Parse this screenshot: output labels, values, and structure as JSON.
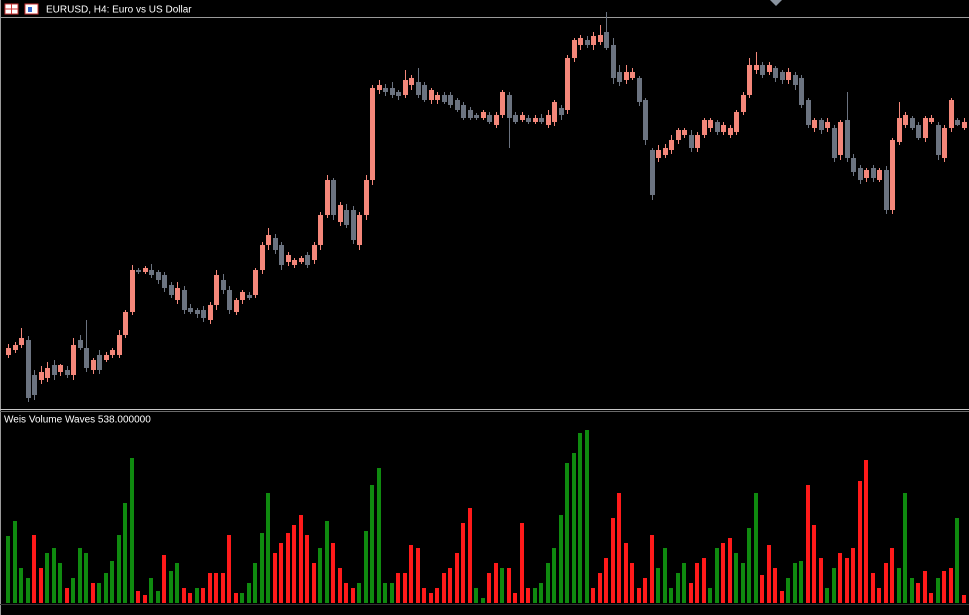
{
  "chart_data": [
    {
      "type": "candlestick",
      "title": "EURUSD, H4:  Euro vs US Dollar",
      "up_color": "#f4877a",
      "down_color": "#6b7380",
      "ylim": [
        0,
        392
      ],
      "open": [
        55,
        60,
        65,
        70,
        35,
        30,
        32,
        45,
        38,
        40,
        35,
        70,
        62,
        40,
        55,
        50,
        55,
        55,
        75,
        98,
        140,
        138,
        140,
        138,
        135,
        125,
        110,
        120,
        102,
        100,
        100,
        90,
        105,
        130,
        120,
        98,
        110,
        115,
        115,
        140,
        165,
        172,
        165,
        148,
        145,
        148,
        155,
        150,
        165,
        195,
        230,
        188,
        200,
        200,
        165,
        195,
        230,
        320,
        322,
        322,
        318,
        315,
        325,
        328,
        325,
        310,
        310,
        315,
        315,
        310,
        305,
        300,
        295,
        292,
        295,
        285,
        295,
        315,
        295,
        290,
        292,
        288,
        292,
        285,
        288,
        302,
        300,
        352,
        365,
        370,
        365,
        368,
        378,
        365,
        338,
        330,
        332,
        332,
        310,
        260,
        252,
        255,
        260,
        270,
        275,
        275,
        262,
        275,
        282,
        288,
        278,
        275,
        278,
        298,
        315,
        340,
        345,
        338,
        342,
        338,
        330,
        335,
        332,
        310,
        282,
        290,
        282,
        282,
        255,
        290,
        252,
        242,
        232,
        242,
        230,
        240,
        200,
        268,
        285,
        292,
        285,
        272,
        288,
        285,
        252,
        282,
        290,
        282
      ],
      "high": [
        66,
        68,
        82,
        74,
        40,
        44,
        48,
        50,
        46,
        44,
        72,
        75,
        90,
        52,
        60,
        58,
        62,
        80,
        100,
        145,
        142,
        144,
        146,
        140,
        138,
        128,
        128,
        124,
        106,
        102,
        104,
        108,
        140,
        136,
        124,
        112,
        120,
        118,
        142,
        168,
        182,
        176,
        168,
        158,
        152,
        154,
        158,
        168,
        198,
        235,
        232,
        208,
        206,
        204,
        198,
        235,
        325,
        330,
        326,
        328,
        320,
        340,
        335,
        342,
        328,
        322,
        318,
        318,
        318,
        312,
        308,
        303,
        297,
        300,
        298,
        298,
        320,
        318,
        298,
        298,
        295,
        295,
        296,
        300,
        310,
        305,
        355,
        372,
        375,
        374,
        378,
        385,
        398,
        372,
        345,
        345,
        342,
        334,
        312,
        262,
        265,
        266,
        275,
        282,
        282,
        280,
        278,
        292,
        292,
        290,
        288,
        285,
        300,
        318,
        352,
        358,
        348,
        348,
        344,
        340,
        342,
        338,
        335,
        312,
        292,
        292,
        292,
        285,
        290,
        318,
        256,
        245,
        242,
        245,
        242,
        244,
        272,
        308,
        298,
        294,
        288,
        294,
        295,
        288,
        285,
        312,
        292,
        292
      ],
      "low": [
        52,
        57,
        62,
        8,
        10,
        26,
        28,
        30,
        34,
        32,
        30,
        60,
        38,
        36,
        36,
        48,
        52,
        52,
        72,
        95,
        136,
        136,
        132,
        126,
        118,
        112,
        106,
        96,
        96,
        92,
        88,
        86,
        100,
        116,
        96,
        95,
        106,
        110,
        112,
        136,
        160,
        156,
        140,
        144,
        142,
        146,
        142,
        146,
        160,
        192,
        190,
        184,
        182,
        166,
        160,
        190,
        225,
        316,
        314,
        312,
        310,
        312,
        320,
        312,
        308,
        306,
        306,
        306,
        302,
        298,
        290,
        290,
        290,
        290,
        286,
        282,
        292,
        262,
        286,
        288,
        286,
        286,
        286,
        282,
        284,
        290,
        296,
        348,
        360,
        362,
        360,
        365,
        360,
        326,
        324,
        326,
        330,
        304,
        265,
        210,
        248,
        252,
        256,
        266,
        272,
        258,
        258,
        272,
        278,
        275,
        275,
        272,
        275,
        295,
        312,
        336,
        332,
        335,
        328,
        326,
        326,
        320,
        302,
        282,
        278,
        276,
        278,
        248,
        250,
        248,
        234,
        226,
        228,
        228,
        228,
        196,
        196,
        265,
        282,
        280,
        270,
        268,
        286,
        250,
        248,
        278,
        284,
        280
      ],
      "close": [
        62,
        65,
        72,
        12,
        15,
        38,
        42,
        35,
        45,
        35,
        65,
        62,
        42,
        50,
        40,
        55,
        60,
        75,
        98,
        140,
        138,
        142,
        135,
        130,
        122,
        115,
        122,
        100,
        98,
        96,
        92,
        105,
        135,
        120,
        100,
        110,
        118,
        112,
        140,
        165,
        175,
        160,
        145,
        155,
        150,
        152,
        145,
        165,
        195,
        230,
        195,
        205,
        185,
        170,
        195,
        230,
        322,
        325,
        318,
        315,
        314,
        330,
        332,
        315,
        310,
        320,
        315,
        308,
        305,
        300,
        292,
        292,
        292,
        298,
        288,
        295,
        318,
        292,
        288,
        295,
        288,
        292,
        288,
        295,
        308,
        295,
        352,
        370,
        372,
        365,
        374,
        375,
        362,
        332,
        328,
        338,
        338,
        308,
        270,
        215,
        260,
        262,
        270,
        280,
        280,
        262,
        275,
        290,
        290,
        278,
        285,
        282,
        298,
        315,
        345,
        345,
        335,
        345,
        332,
        330,
        338,
        325,
        305,
        285,
        290,
        280,
        288,
        252,
        288,
        252,
        238,
        230,
        240,
        232,
        240,
        200,
        270,
        292,
        295,
        282,
        272,
        292,
        292,
        255,
        282,
        310,
        285,
        288
      ]
    },
    {
      "type": "histogram",
      "title": "Weis Volume Waves 538.000000",
      "palette": [
        "#0f8a0f",
        "#ff1a1a"
      ],
      "ylim": [
        0,
        190
      ],
      "values": [
        67,
        82,
        35,
        25,
        68,
        35,
        50,
        55,
        40,
        15,
        25,
        55,
        50,
        20,
        20,
        30,
        42,
        68,
        100,
        145,
        12,
        8,
        25,
        12,
        48,
        32,
        40,
        15,
        10,
        15,
        15,
        30,
        30,
        30,
        68,
        10,
        10,
        20,
        40,
        70,
        110,
        50,
        60,
        70,
        78,
        88,
        68,
        40,
        55,
        82,
        60,
        35,
        20,
        15,
        20,
        72,
        118,
        135,
        20,
        20,
        30,
        30,
        58,
        55,
        15,
        10,
        15,
        30,
        35,
        50,
        80,
        95,
        15,
        5,
        30,
        40,
        35,
        35,
        10,
        80,
        15,
        15,
        20,
        40,
        55,
        88,
        140,
        150,
        170,
        173,
        15,
        30,
        45,
        85,
        110,
        60,
        40,
        15,
        25,
        68,
        35,
        55,
        15,
        30,
        40,
        20,
        40,
        45,
        15,
        55,
        60,
        65,
        50,
        40,
        75,
        110,
        28,
        58,
        35,
        12,
        25,
        40,
        42,
        118,
        78,
        45,
        15,
        35,
        50,
        45,
        55,
        122,
        143,
        30,
        15,
        40,
        55,
        35,
        110,
        25,
        20,
        32,
        10,
        25,
        32,
        35,
        85,
        8
      ],
      "color_index": [
        0,
        0,
        0,
        0,
        1,
        1,
        0,
        0,
        0,
        1,
        0,
        0,
        0,
        1,
        0,
        0,
        0,
        0,
        0,
        0,
        1,
        1,
        0,
        0,
        1,
        0,
        0,
        1,
        1,
        0,
        1,
        1,
        1,
        1,
        1,
        1,
        0,
        0,
        0,
        0,
        0,
        1,
        1,
        1,
        1,
        1,
        1,
        1,
        0,
        0,
        1,
        1,
        1,
        1,
        0,
        0,
        0,
        0,
        0,
        0,
        1,
        1,
        1,
        1,
        1,
        1,
        1,
        1,
        1,
        1,
        1,
        1,
        0,
        0,
        1,
        1,
        0,
        1,
        1,
        1,
        1,
        0,
        0,
        0,
        0,
        0,
        0,
        0,
        0,
        0,
        1,
        1,
        1,
        1,
        1,
        1,
        1,
        1,
        1,
        1,
        0,
        0,
        0,
        0,
        0,
        1,
        1,
        1,
        0,
        0,
        1,
        1,
        0,
        0,
        0,
        0,
        1,
        1,
        1,
        1,
        0,
        0,
        0,
        1,
        1,
        1,
        0,
        0,
        1,
        1,
        1,
        1,
        1,
        1,
        1,
        1,
        1,
        0,
        0,
        0,
        1,
        1,
        1,
        0,
        1,
        1,
        0,
        1
      ]
    }
  ]
}
